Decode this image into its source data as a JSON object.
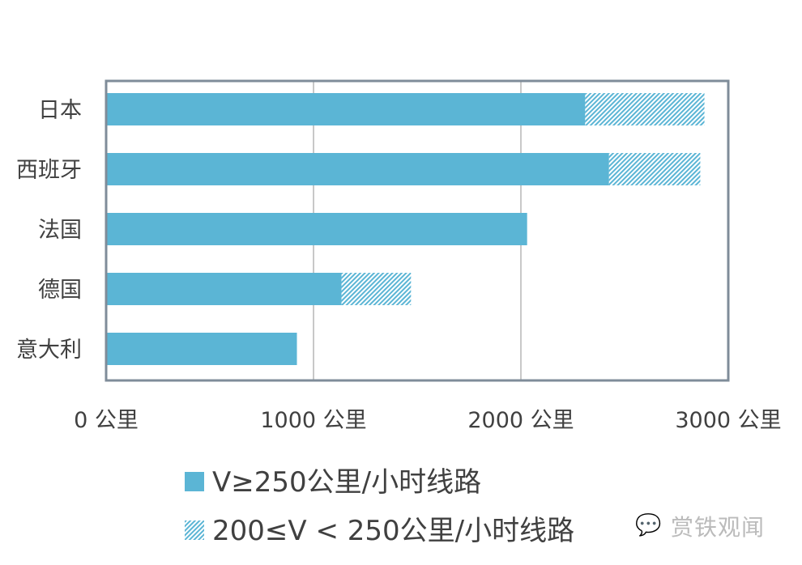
{
  "chart_data": {
    "type": "bar",
    "orientation": "horizontal",
    "stacked": true,
    "categories": [
      "日本",
      "西班牙",
      "法国",
      "德国",
      "意大利"
    ],
    "series": [
      {
        "name": "V≥250公里/小时线路",
        "values": [
          2310,
          2425,
          2030,
          1135,
          920
        ],
        "color": "#5bb5d5",
        "pattern": "solid"
      },
      {
        "name": "200≤V < 250公里/小时线路",
        "values": [
          575,
          440,
          0,
          335,
          0
        ],
        "color": "#5bb5d5",
        "pattern": "hatched"
      }
    ],
    "xticks": [
      "0 公里",
      "1000 公里",
      "2000 公里",
      "3000 公里"
    ],
    "xlim": [
      0,
      3000
    ],
    "grid": true,
    "legend": "bottom"
  },
  "watermark": "赏铁观闻"
}
